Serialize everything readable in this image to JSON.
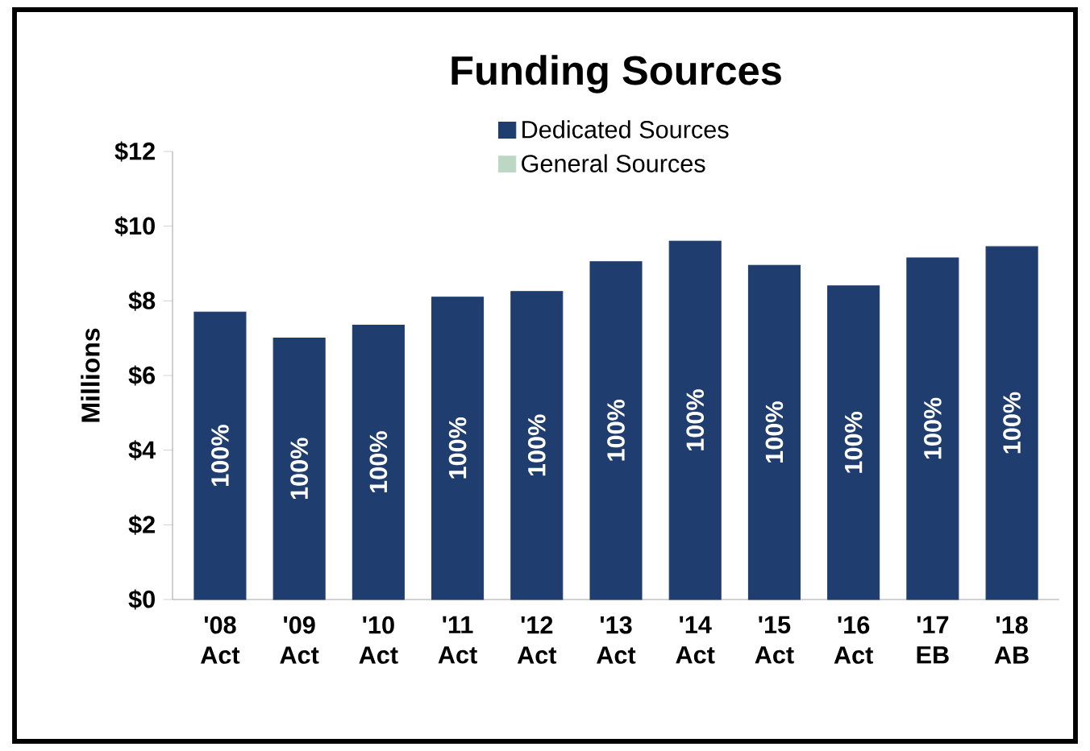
{
  "chart_data": {
    "type": "bar",
    "title": "Funding Sources",
    "ylabel": "Millions",
    "categories": [
      "'08 Act",
      "'09 Act",
      "'10 Act",
      "'11 Act",
      "'12 Act",
      "'13 Act",
      "'14 Act",
      "'15 Act",
      "'16 Act",
      "'17 EB",
      "'18 AB"
    ],
    "stacked": true,
    "series": [
      {
        "name": "Dedicated Sources",
        "color": "#1f3d6e",
        "values": [
          7.7,
          7.0,
          7.35,
          8.1,
          8.25,
          9.05,
          9.6,
          8.95,
          8.4,
          9.15,
          9.45
        ]
      },
      {
        "name": "General Sources",
        "color": "#bcd8c4",
        "values": [
          0,
          0,
          0,
          0,
          0,
          0,
          0,
          0,
          0,
          0,
          0
        ]
      }
    ],
    "annotations": [
      "100%",
      "100%",
      "100%",
      "100%",
      "100%",
      "100%",
      "100%",
      "100%",
      "100%",
      "100%",
      "100%"
    ],
    "ylim": [
      0,
      12
    ],
    "yticks": [
      {
        "value": 0,
        "label": "$0"
      },
      {
        "value": 2,
        "label": "$2"
      },
      {
        "value": 4,
        "label": "$4"
      },
      {
        "value": 6,
        "label": "$6"
      },
      {
        "value": 8,
        "label": "$8"
      },
      {
        "value": 10,
        "label": "$10"
      },
      {
        "value": 12,
        "label": "$12"
      }
    ],
    "legend": "top",
    "grid": false
  }
}
